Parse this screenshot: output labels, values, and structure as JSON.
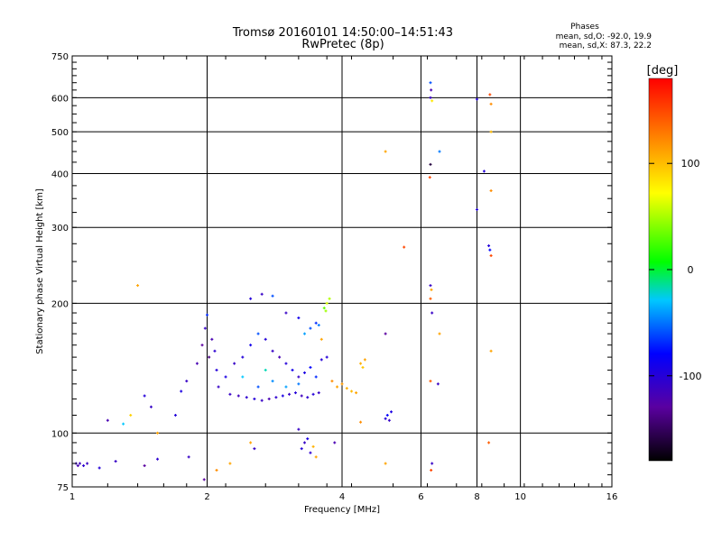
{
  "chart_data": {
    "type": "scatter",
    "title": "Tromsø 20160101 14:50:00–14:51:43",
    "subtitle": "RwPretec (8p)",
    "xlabel": "Frequency [MHz]",
    "ylabel": "Stationary phase Virtual Height [km]",
    "x_scale": "log",
    "y_scale": "log",
    "xlim": [
      1,
      16
    ],
    "ylim": [
      75,
      750
    ],
    "x_ticks": [
      1,
      2,
      4,
      6,
      8,
      10,
      16
    ],
    "x_tick_labels": [
      "1",
      "2",
      "4",
      "6",
      "8",
      "10",
      "16"
    ],
    "y_ticks": [
      75,
      100,
      200,
      300,
      400,
      500,
      600,
      750
    ],
    "y_tick_labels": [
      "75",
      "100",
      "200",
      "300",
      "400",
      "500",
      "600",
      "750"
    ],
    "grid": true,
    "annotation": {
      "title": "Phases",
      "line1": "mean, sd,O: -92.0, 19.9",
      "line2": "mean, sd,X:  87.3, 22.2"
    },
    "colorbar": {
      "label": "[deg]",
      "range": [
        -180,
        180
      ],
      "ticks": [
        100,
        0,
        -100
      ],
      "tick_labels": [
        "100",
        "0",
        "-100"
      ]
    },
    "series": [
      {
        "values": [
          [
            1.02,
            85,
            -110
          ],
          [
            1.04,
            85,
            -115
          ],
          [
            1.06,
            84,
            -105
          ],
          [
            1.08,
            85,
            -112
          ],
          [
            1.03,
            84,
            -120
          ],
          [
            1.15,
            83,
            -100
          ],
          [
            1.25,
            86,
            -110
          ],
          [
            1.45,
            84,
            -130
          ],
          [
            1.55,
            87,
            -105
          ],
          [
            1.82,
            88,
            -110
          ],
          [
            1.97,
            78,
            -130
          ],
          [
            1.2,
            107,
            -120
          ],
          [
            1.3,
            105,
            -30
          ],
          [
            1.35,
            110,
            90
          ],
          [
            1.55,
            100,
            110
          ],
          [
            1.5,
            115,
            -110
          ],
          [
            1.45,
            122,
            -100
          ],
          [
            1.7,
            110,
            -100
          ],
          [
            1.75,
            125,
            -95
          ],
          [
            1.8,
            132,
            -110
          ],
          [
            1.9,
            145,
            -120
          ],
          [
            1.95,
            160,
            -130
          ],
          [
            1.98,
            175,
            -110
          ],
          [
            2.0,
            188,
            -70
          ],
          [
            2.02,
            150,
            -140
          ],
          [
            2.05,
            165,
            -120
          ],
          [
            2.08,
            155,
            -105
          ],
          [
            2.1,
            140,
            -100
          ],
          [
            2.12,
            128,
            -110
          ],
          [
            2.2,
            135,
            -95
          ],
          [
            2.3,
            145,
            -110
          ],
          [
            2.4,
            150,
            -100
          ],
          [
            2.5,
            160,
            -90
          ],
          [
            2.6,
            170,
            -60
          ],
          [
            2.7,
            165,
            -100
          ],
          [
            2.8,
            155,
            -110
          ],
          [
            2.9,
            150,
            -120
          ],
          [
            3.0,
            145,
            -100
          ],
          [
            3.1,
            140,
            -90
          ],
          [
            3.2,
            135,
            -110
          ],
          [
            3.3,
            138,
            -95
          ],
          [
            3.4,
            142,
            -80
          ],
          [
            3.5,
            135,
            -70
          ],
          [
            3.6,
            148,
            -100
          ],
          [
            2.25,
            123,
            -110
          ],
          [
            2.35,
            122,
            -115
          ],
          [
            2.45,
            121,
            -105
          ],
          [
            2.55,
            120,
            -100
          ],
          [
            2.65,
            119,
            -110
          ],
          [
            2.75,
            120,
            -120
          ],
          [
            2.85,
            121,
            -105
          ],
          [
            2.95,
            122,
            -95
          ],
          [
            3.05,
            123,
            -110
          ],
          [
            3.15,
            124,
            -100
          ],
          [
            3.25,
            122,
            -115
          ],
          [
            3.35,
            121,
            -105
          ],
          [
            3.45,
            123,
            -100
          ],
          [
            3.55,
            124,
            -110
          ],
          [
            2.6,
            128,
            -60
          ],
          [
            2.8,
            132,
            -45
          ],
          [
            3.0,
            128,
            -40
          ],
          [
            3.2,
            130,
            -50
          ],
          [
            2.4,
            135,
            -30
          ],
          [
            2.7,
            140,
            -20
          ],
          [
            3.4,
            175,
            -60
          ],
          [
            3.5,
            180,
            -70
          ],
          [
            3.55,
            178,
            -50
          ],
          [
            3.65,
            195,
            30
          ],
          [
            3.7,
            200,
            60
          ],
          [
            3.68,
            192,
            45
          ],
          [
            3.75,
            205,
            50
          ],
          [
            2.5,
            205,
            -100
          ],
          [
            2.8,
            208,
            -60
          ],
          [
            3.0,
            190,
            -110
          ],
          [
            3.2,
            185,
            -90
          ],
          [
            3.3,
            170,
            -40
          ],
          [
            3.6,
            165,
            110
          ],
          [
            3.7,
            150,
            -100
          ],
          [
            3.8,
            132,
            120
          ],
          [
            3.9,
            128,
            110
          ],
          [
            4.0,
            130,
            115
          ],
          [
            4.1,
            127,
            105
          ],
          [
            4.2,
            125,
            100
          ],
          [
            4.3,
            124,
            110
          ],
          [
            4.4,
            145,
            105
          ],
          [
            4.5,
            148,
            110
          ],
          [
            4.45,
            142,
            95
          ],
          [
            4.4,
            106,
            120
          ],
          [
            3.2,
            102,
            -110
          ],
          [
            3.25,
            92,
            -100
          ],
          [
            3.3,
            95,
            -110
          ],
          [
            3.35,
            97,
            -95
          ],
          [
            3.4,
            90,
            -105
          ],
          [
            3.45,
            93,
            105
          ],
          [
            3.5,
            88,
            110
          ],
          [
            3.85,
            95,
            -120
          ],
          [
            2.1,
            82,
            120
          ],
          [
            2.25,
            85,
            110
          ],
          [
            2.5,
            95,
            110
          ],
          [
            2.55,
            92,
            -110
          ],
          [
            5.0,
            108,
            -100
          ],
          [
            5.05,
            110,
            -80
          ],
          [
            5.1,
            107,
            -110
          ],
          [
            5.15,
            112,
            -95
          ],
          [
            5.0,
            170,
            -130
          ],
          [
            5.0,
            85,
            110
          ],
          [
            1.4,
            220,
            110
          ],
          [
            2.65,
            210,
            -110
          ],
          [
            5.0,
            450,
            110
          ],
          [
            5.5,
            270,
            150
          ],
          [
            6.3,
            650,
            -60
          ],
          [
            6.32,
            625,
            -120
          ],
          [
            6.3,
            600,
            -110
          ],
          [
            6.35,
            590,
            80
          ],
          [
            6.6,
            450,
            -50
          ],
          [
            6.3,
            420,
            -160
          ],
          [
            6.28,
            392,
            150
          ],
          [
            6.3,
            220,
            -110
          ],
          [
            6.33,
            215,
            110
          ],
          [
            6.3,
            205,
            140
          ],
          [
            6.35,
            190,
            -110
          ],
          [
            6.6,
            170,
            110
          ],
          [
            6.3,
            132,
            140
          ],
          [
            6.55,
            130,
            -110
          ],
          [
            6.35,
            85,
            -110
          ],
          [
            6.32,
            82,
            150
          ],
          [
            8.0,
            595,
            -100
          ],
          [
            8.55,
            610,
            150
          ],
          [
            8.6,
            580,
            120
          ],
          [
            8.3,
            405,
            -100
          ],
          [
            8.6,
            365,
            120
          ],
          [
            8.0,
            330,
            -100
          ],
          [
            8.5,
            272,
            -100
          ],
          [
            8.55,
            266,
            -80
          ],
          [
            8.6,
            258,
            150
          ],
          [
            8.6,
            155,
            110
          ],
          [
            8.5,
            95,
            140
          ],
          [
            8.6,
            500,
            100
          ]
        ]
      }
    ]
  }
}
